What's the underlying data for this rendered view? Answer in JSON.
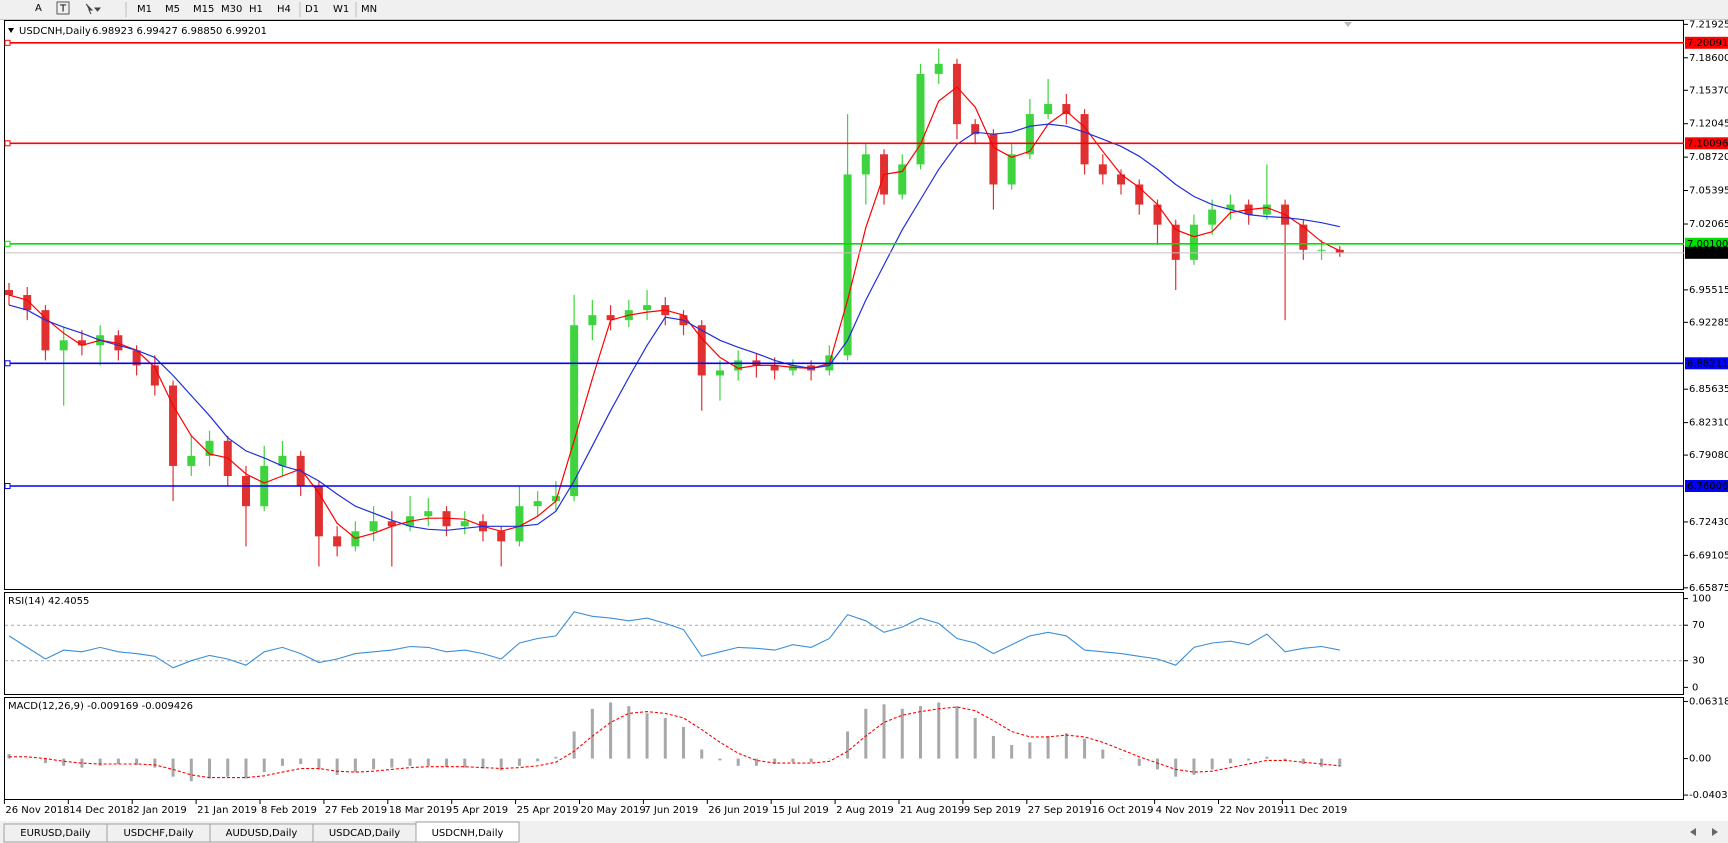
{
  "toolbar": {
    "font_button": "A",
    "timeframes": [
      "M1",
      "M5",
      "M15",
      "M30",
      "H1",
      "H4",
      "D1",
      "W1",
      "MN"
    ]
  },
  "chart_data": {
    "type": "candlestick",
    "title": "USDCNH,Daily",
    "subtitle": "6.98923 6.99427 6.98850 6.99201",
    "up_color": "#3fd43f",
    "down_color": "#e03030",
    "x_labels": [
      "26 Nov 2018",
      "14 Dec 2018",
      "2 Jan 2019",
      "21 Jan 2019",
      "8 Feb 2019",
      "27 Feb 2019",
      "18 Mar 2019",
      "5 Apr 2019",
      "25 Apr 2019",
      "20 May 2019",
      "7 Jun 2019",
      "26 Jun 2019",
      "15 Jul 2019",
      "2 Aug 2019",
      "21 Aug 2019",
      "9 Sep 2019",
      "27 Sep 2019",
      "16 Oct 2019",
      "4 Nov 2019",
      "22 Nov 2019",
      "11 Dec 2019"
    ],
    "open": [
      6.955,
      6.95,
      6.935,
      6.895,
      6.905,
      6.9,
      6.91,
      6.895,
      6.88,
      6.86,
      6.78,
      6.79,
      6.805,
      6.77,
      6.74,
      6.78,
      6.79,
      6.76,
      6.71,
      6.7,
      6.715,
      6.725,
      6.72,
      6.73,
      6.735,
      6.72,
      6.725,
      6.715,
      6.705,
      6.74,
      6.745,
      6.75,
      6.92,
      6.93,
      6.925,
      6.935,
      6.94,
      6.93,
      6.92,
      6.87,
      6.875,
      6.885,
      6.88,
      6.875,
      6.88,
      6.875,
      6.89,
      7.07,
      7.09,
      7.05,
      7.08,
      7.17,
      7.18,
      7.12,
      7.11,
      7.06,
      7.09,
      7.13,
      7.14,
      7.13,
      7.08,
      7.07,
      7.06,
      7.04,
      7.02,
      6.985,
      7.02,
      7.035,
      7.04,
      7.03,
      7.04,
      7.02,
      6.995,
      6.995
    ],
    "high": [
      6.962,
      6.958,
      6.94,
      6.918,
      6.915,
      6.92,
      6.915,
      6.9,
      6.89,
      6.865,
      6.81,
      6.815,
      6.81,
      6.78,
      6.8,
      6.805,
      6.795,
      6.765,
      6.72,
      6.725,
      6.74,
      6.735,
      6.75,
      6.748,
      6.74,
      6.735,
      6.732,
      6.72,
      6.76,
      6.755,
      6.765,
      6.95,
      6.945,
      6.94,
      6.945,
      6.955,
      6.948,
      6.935,
      6.925,
      6.885,
      6.895,
      6.892,
      6.888,
      6.886,
      6.885,
      6.9,
      7.13,
      7.1,
      7.095,
      7.09,
      7.18,
      7.195,
      7.185,
      7.125,
      7.115,
      7.1,
      7.145,
      7.165,
      7.15,
      7.135,
      7.09,
      7.075,
      7.065,
      7.045,
      7.025,
      7.03,
      7.045,
      7.05,
      7.045,
      7.08,
      7.045,
      7.025,
      7.005,
      6.999
    ],
    "low": [
      6.94,
      6.925,
      6.885,
      6.84,
      6.89,
      6.88,
      6.885,
      6.87,
      6.85,
      6.745,
      6.77,
      6.78,
      6.76,
      6.7,
      6.735,
      6.77,
      6.75,
      6.68,
      6.69,
      6.695,
      6.705,
      6.68,
      6.715,
      6.72,
      6.71,
      6.712,
      6.705,
      6.68,
      6.7,
      6.73,
      6.735,
      6.745,
      6.905,
      6.915,
      6.918,
      6.925,
      6.92,
      6.91,
      6.835,
      6.845,
      6.865,
      6.868,
      6.866,
      6.87,
      6.865,
      6.87,
      6.885,
      7.04,
      7.04,
      7.045,
      7.075,
      7.16,
      7.105,
      7.1,
      7.035,
      7.055,
      7.085,
      7.125,
      7.12,
      7.07,
      7.06,
      7.05,
      7.03,
      7.0,
      6.955,
      6.98,
      7.01,
      7.025,
      7.02,
      7.025,
      6.925,
      6.985,
      6.985,
      6.988
    ],
    "close": [
      6.95,
      6.935,
      6.895,
      6.905,
      6.9,
      6.91,
      6.895,
      6.88,
      6.86,
      6.78,
      6.79,
      6.805,
      6.77,
      6.74,
      6.78,
      6.79,
      6.76,
      6.71,
      6.7,
      6.715,
      6.725,
      6.72,
      6.73,
      6.735,
      6.72,
      6.725,
      6.715,
      6.705,
      6.74,
      6.745,
      6.75,
      6.92,
      6.93,
      6.925,
      6.935,
      6.94,
      6.93,
      6.92,
      6.87,
      6.875,
      6.885,
      6.88,
      6.875,
      6.88,
      6.875,
      6.89,
      7.07,
      7.09,
      7.05,
      7.08,
      7.17,
      7.18,
      7.12,
      7.11,
      7.06,
      7.09,
      7.13,
      7.14,
      7.13,
      7.08,
      7.07,
      7.06,
      7.04,
      7.02,
      6.985,
      7.02,
      7.035,
      7.04,
      7.03,
      7.04,
      7.02,
      6.995,
      6.995,
      6.992
    ],
    "moving_averages": [
      {
        "color": "#ff0000",
        "values": [
          6.95,
          6.945,
          6.927,
          6.912,
          6.9,
          6.905,
          6.902,
          6.895,
          6.878,
          6.84,
          6.81,
          6.792,
          6.788,
          6.772,
          6.763,
          6.77,
          6.777,
          6.753,
          6.723,
          6.708,
          6.713,
          6.72,
          6.725,
          6.728,
          6.728,
          6.727,
          6.72,
          6.715,
          6.72,
          6.73,
          6.745,
          6.805,
          6.867,
          6.925,
          6.93,
          6.933,
          6.935,
          6.93,
          6.907,
          6.888,
          6.877,
          6.88,
          6.88,
          6.878,
          6.877,
          6.882,
          6.945,
          7.017,
          7.07,
          7.073,
          7.1,
          7.143,
          7.157,
          7.137,
          7.097,
          7.087,
          7.093,
          7.12,
          7.133,
          7.117,
          7.093,
          7.07,
          7.057,
          7.04,
          7.015,
          7.008,
          7.013,
          7.032,
          7.035,
          7.037,
          7.03,
          7.018,
          7.003,
          6.994
        ]
      },
      {
        "color": "#1f2fd8",
        "values": [
          6.94,
          6.935,
          6.925,
          6.918,
          6.912,
          6.905,
          6.9,
          6.895,
          6.888,
          6.87,
          6.85,
          6.83,
          6.808,
          6.795,
          6.788,
          6.78,
          6.775,
          6.765,
          6.752,
          6.74,
          6.733,
          6.726,
          6.72,
          6.717,
          6.716,
          6.718,
          6.72,
          6.72,
          6.72,
          6.722,
          6.735,
          6.765,
          6.8,
          6.835,
          6.868,
          6.9,
          6.928,
          6.925,
          6.915,
          6.905,
          6.898,
          6.892,
          6.885,
          6.88,
          6.877,
          6.88,
          6.905,
          6.945,
          6.98,
          7.015,
          7.045,
          7.075,
          7.1,
          7.112,
          7.11,
          7.112,
          7.118,
          7.12,
          7.118,
          7.112,
          7.105,
          7.098,
          7.088,
          7.075,
          7.06,
          7.048,
          7.04,
          7.035,
          7.03,
          7.028,
          7.027,
          7.025,
          7.022,
          7.018
        ]
      }
    ],
    "ylim": [
      6.6566,
      7.2236
    ],
    "yticks": [
      7.21925,
      {
        "value": 7.186,
        "label": "7.18600"
      },
      {
        "value": 7.1537,
        "label": "7.15370"
      },
      7.12045,
      {
        "value": 7.0872,
        "label": "7.08720"
      },
      7.05395,
      7.02065,
      6.95515,
      6.92285,
      6.85635,
      {
        "value": 6.8231,
        "label": "6.82310"
      },
      {
        "value": 6.7908,
        "label": "6.79080"
      },
      {
        "value": 6.7243,
        "label": "6.72430"
      },
      6.69105,
      6.65875
    ],
    "levels": [
      {
        "value": 7.20091,
        "color": "#ff0000"
      },
      {
        "value": 7.10096,
        "color": "#ff0000"
      },
      {
        "value": 7.001,
        "label": "7.00100",
        "color": "#00e000"
      },
      {
        "value": 6.88211,
        "color": "#0000ff"
      },
      {
        "value": 6.76006,
        "color": "#0000ff"
      }
    ],
    "current": {
      "value": 6.99201,
      "color": "#c0c0c0"
    },
    "rsi": {
      "label": "RSI(14) 42.4055",
      "color": "#3c8fd8",
      "values": [
        58,
        45,
        32,
        42,
        40,
        45,
        40,
        38,
        35,
        22,
        30,
        36,
        32,
        25,
        40,
        45,
        38,
        28,
        32,
        38,
        40,
        42,
        46,
        45,
        40,
        42,
        38,
        32,
        50,
        55,
        58,
        85,
        80,
        78,
        75,
        78,
        72,
        65,
        35,
        40,
        45,
        44,
        42,
        48,
        45,
        55,
        82,
        75,
        62,
        68,
        78,
        72,
        55,
        50,
        38,
        48,
        58,
        62,
        58,
        42,
        40,
        38,
        35,
        32,
        25,
        45,
        50,
        52,
        48,
        60,
        40,
        44,
        46,
        42
      ],
      "ylim": [
        -8.6,
        107.4
      ],
      "yticks": [
        100,
        70,
        30,
        0
      ],
      "levels": [
        70,
        30
      ]
    },
    "macd": {
      "label": "MACD(12,26,9) -0.009169 -0.009426",
      "hist_color": "#a8a8a8",
      "signal_color": "#ff0000",
      "histogram": [
        0.005,
        0.0,
        -0.005,
        -0.008,
        -0.01,
        -0.008,
        -0.006,
        -0.007,
        -0.01,
        -0.02,
        -0.025,
        -0.022,
        -0.02,
        -0.022,
        -0.015,
        -0.008,
        -0.006,
        -0.012,
        -0.018,
        -0.015,
        -0.012,
        -0.01,
        -0.008,
        -0.008,
        -0.009,
        -0.01,
        -0.011,
        -0.013,
        -0.008,
        -0.003,
        0.002,
        0.03,
        0.055,
        0.062,
        0.058,
        0.05,
        0.045,
        0.035,
        0.01,
        -0.002,
        -0.008,
        -0.008,
        -0.006,
        -0.004,
        -0.004,
        0.0,
        0.03,
        0.055,
        0.06,
        0.055,
        0.058,
        0.062,
        0.058,
        0.045,
        0.025,
        0.015,
        0.018,
        0.025,
        0.028,
        0.022,
        0.01,
        0.0,
        -0.008,
        -0.012,
        -0.02,
        -0.018,
        -0.012,
        -0.005,
        -0.002,
        0.002,
        -0.002,
        -0.006,
        -0.009,
        -0.009
      ],
      "signal": [
        0.002,
        0.002,
        0.0,
        -0.003,
        -0.005,
        -0.006,
        -0.006,
        -0.006,
        -0.007,
        -0.012,
        -0.018,
        -0.021,
        -0.021,
        -0.021,
        -0.019,
        -0.015,
        -0.011,
        -0.011,
        -0.014,
        -0.015,
        -0.014,
        -0.012,
        -0.01,
        -0.009,
        -0.009,
        -0.009,
        -0.01,
        -0.011,
        -0.01,
        -0.008,
        -0.004,
        0.008,
        0.025,
        0.04,
        0.05,
        0.052,
        0.05,
        0.045,
        0.032,
        0.018,
        0.006,
        -0.002,
        -0.005,
        -0.005,
        -0.005,
        -0.003,
        0.008,
        0.025,
        0.04,
        0.048,
        0.052,
        0.055,
        0.057,
        0.053,
        0.042,
        0.03,
        0.024,
        0.024,
        0.026,
        0.024,
        0.018,
        0.01,
        0.002,
        -0.005,
        -0.012,
        -0.015,
        -0.014,
        -0.01,
        -0.006,
        -0.002,
        -0.002,
        -0.004,
        -0.006,
        -0.008
      ],
      "ylim": [
        -0.0458,
        0.0681
      ],
      "yticks": [
        {
          "value": 0.063184,
          "label": "0.063184"
        },
        {
          "value": 0,
          "label": "0.00"
        },
        {
          "value": -0.040355,
          "label": "-0.040355"
        }
      ]
    }
  },
  "tabs": {
    "items": [
      "EURUSD,Daily",
      "USDCHF,Daily",
      "AUDUSD,Daily",
      "USDCAD,Daily",
      "USDCNH,Daily"
    ],
    "active": 4
  }
}
